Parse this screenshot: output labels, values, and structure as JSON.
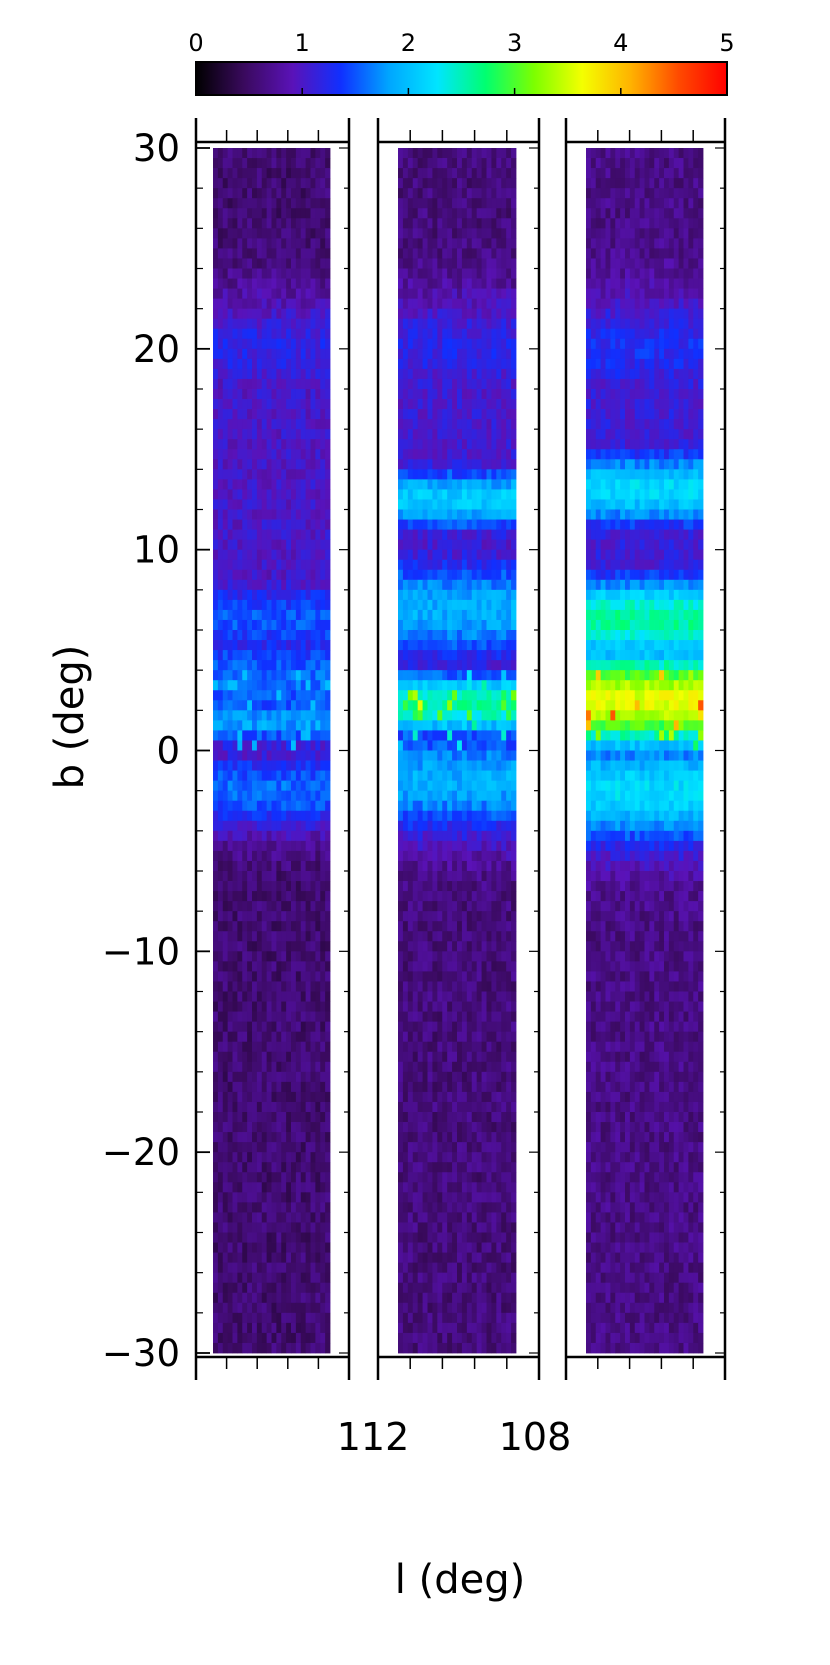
{
  "chart_data": {
    "type": "heatmap",
    "colorbar": {
      "range": [
        0,
        5
      ],
      "ticks": [
        "0",
        "1",
        "2",
        "3",
        "4",
        "5"
      ],
      "colormap": [
        "#000000",
        "#3a0a5e",
        "#5a12b8",
        "#1030ff",
        "#00a6ff",
        "#00e5ff",
        "#00ff70",
        "#7cff00",
        "#f4ff00",
        "#ffb300",
        "#ff4a00",
        "#ff0000"
      ]
    },
    "xlabel": "l (deg)",
    "ylabel": "b (deg)",
    "ylim": [
      -30,
      30
    ],
    "yticks": [
      "30",
      "20",
      "10",
      "0",
      "−10",
      "−20",
      "−30"
    ],
    "yticks_values": [
      30,
      20,
      10,
      0,
      -10,
      -20,
      -30
    ],
    "xtick_labels": [
      {
        "label": "112",
        "value": 112
      },
      {
        "label": "108",
        "value": 108
      }
    ],
    "panels": [
      {
        "name": "panel-1",
        "background_level": 0.55,
        "bands": [
          {
            "b_center": 20,
            "b_width": 2.0,
            "level": 1.2
          },
          {
            "b_center": 6.5,
            "b_width": 1.6,
            "level": 1.5
          },
          {
            "b_center": 3.5,
            "b_width": 2.0,
            "level": 1.6
          },
          {
            "b_center": 1.5,
            "b_width": 1.0,
            "level": 1.8
          },
          {
            "b_center": -2.0,
            "b_width": 1.5,
            "level": 1.6
          }
        ],
        "peak_level": 2.0
      },
      {
        "name": "panel-2",
        "background_level": 0.6,
        "bands": [
          {
            "b_center": 20,
            "b_width": 2.0,
            "level": 1.2
          },
          {
            "b_center": 12.5,
            "b_width": 1.2,
            "level": 2.1
          },
          {
            "b_center": 7.0,
            "b_width": 2.0,
            "level": 1.9
          },
          {
            "b_center": 2.3,
            "b_width": 1.2,
            "level": 2.6
          },
          {
            "b_center": -1.5,
            "b_width": 2.0,
            "level": 1.9
          }
        ],
        "peak_level": 3.8
      },
      {
        "name": "panel-3",
        "background_level": 0.65,
        "bands": [
          {
            "b_center": 20,
            "b_width": 2.0,
            "level": 1.3
          },
          {
            "b_center": 13.0,
            "b_width": 1.4,
            "level": 2.2
          },
          {
            "b_center": 6.5,
            "b_width": 1.6,
            "level": 2.6
          },
          {
            "b_center": 2.5,
            "b_width": 1.8,
            "level": 3.6
          },
          {
            "b_center": -2.0,
            "b_width": 2.0,
            "level": 2.2
          }
        ],
        "peak_level": 4.5
      }
    ]
  }
}
